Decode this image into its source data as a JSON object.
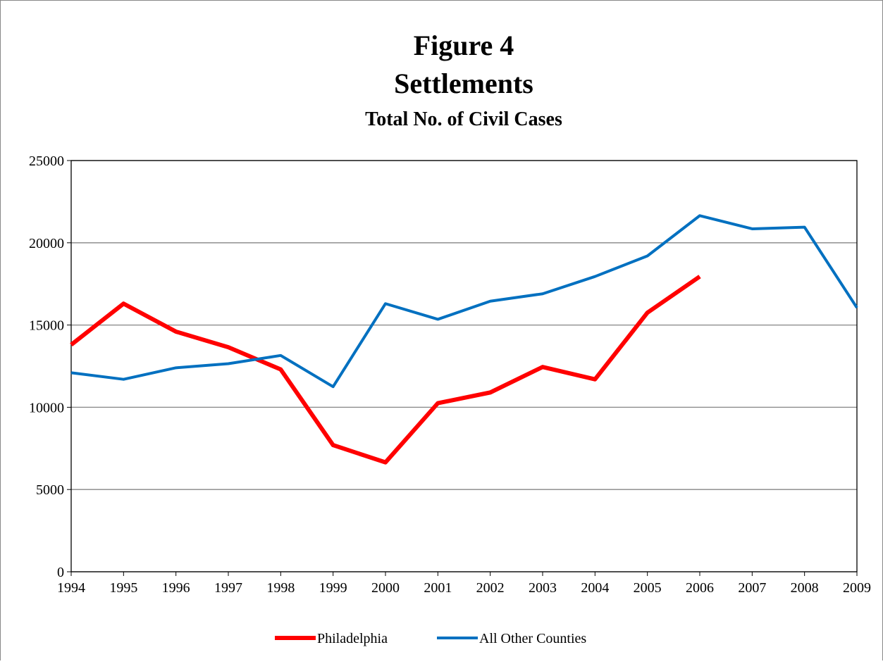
{
  "chart_data": {
    "type": "line",
    "title": "Figure 4",
    "subtitle": "Settlements",
    "subtitle2": "Total No. of Civil Cases",
    "x": [
      1994,
      1995,
      1996,
      1997,
      1998,
      1999,
      2000,
      2001,
      2002,
      2003,
      2004,
      2005,
      2006,
      2007,
      2008,
      2009
    ],
    "xlim": [
      1994,
      2009
    ],
    "xticks": [
      1994,
      1995,
      1996,
      1997,
      1998,
      1999,
      2000,
      2001,
      2002,
      2003,
      2004,
      2005,
      2006,
      2007,
      2008,
      2009
    ],
    "ylim": [
      0,
      25000
    ],
    "yticks": [
      0,
      5000,
      10000,
      15000,
      20000,
      25000
    ],
    "grid": true,
    "legend": "bottom",
    "series": [
      {
        "name": "Philadelphia",
        "color": "#ff0000",
        "values": [
          13800,
          16300,
          14600,
          13650,
          12300,
          7700,
          6650,
          10250,
          10900,
          12450,
          11700,
          15750,
          17950,
          null,
          null,
          null
        ]
      },
      {
        "name": "All Other Counties",
        "color": "#0070c0",
        "values": [
          12100,
          11700,
          12400,
          12650,
          13150,
          11250,
          16300,
          15350,
          16450,
          16900,
          17950,
          19200,
          21650,
          20850,
          20950,
          16050
        ]
      }
    ]
  }
}
